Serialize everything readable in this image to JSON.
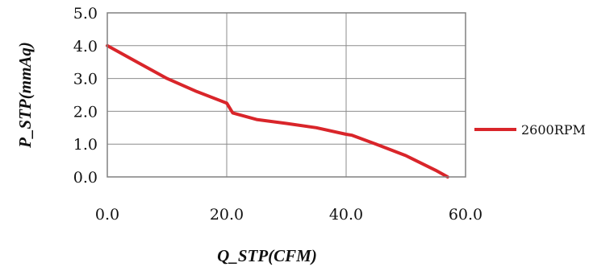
{
  "chart_data": {
    "type": "line",
    "xlabel": "Q_STP(CFM)",
    "ylabel": "P_STP(mmAq)",
    "xlim": [
      0,
      60
    ],
    "ylim": [
      0,
      5
    ],
    "x_ticks": [
      "0.0",
      "20.0",
      "40.0",
      "60.0"
    ],
    "y_ticks": [
      "0.0",
      "1.0",
      "2.0",
      "3.0",
      "4.0",
      "5.0"
    ],
    "grid": true,
    "legend_position": "right",
    "series": [
      {
        "name": "2600RPM",
        "color": "#d9252a",
        "x": [
          0,
          5,
          10,
          15,
          20,
          21,
          25,
          30,
          35,
          40,
          41,
          45,
          50,
          55,
          57
        ],
        "y": [
          4.0,
          3.5,
          3.0,
          2.6,
          2.25,
          1.95,
          1.75,
          1.63,
          1.5,
          1.3,
          1.27,
          1.0,
          0.65,
          0.2,
          0.0
        ]
      }
    ]
  }
}
